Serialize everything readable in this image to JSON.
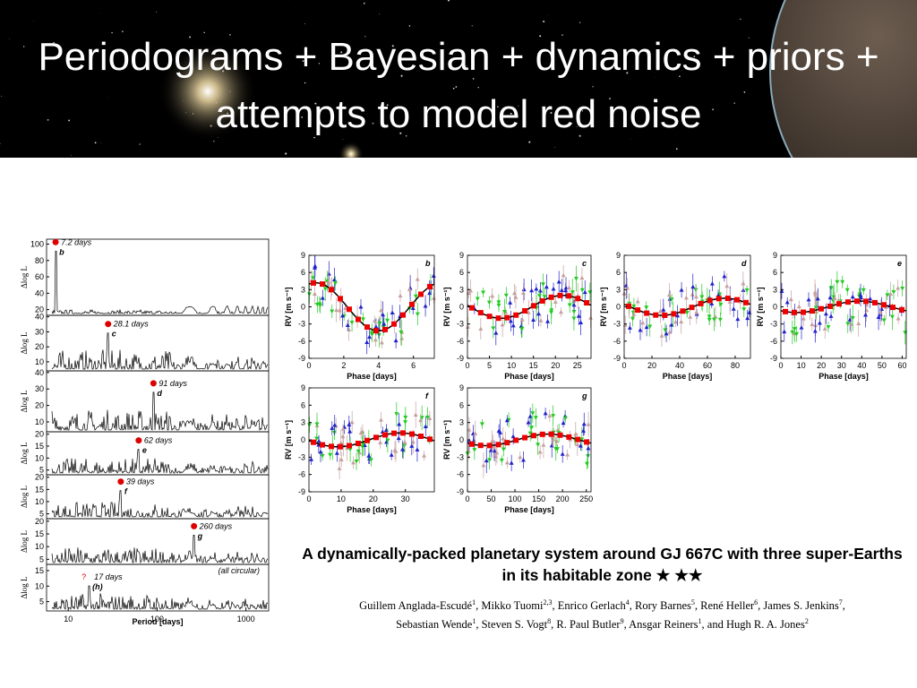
{
  "header": {
    "title": "Periodograms + Bayesian + dynamics + priors + attempts to model red noise"
  },
  "periodogram": {
    "ylabel": "Δlog L",
    "xlabel": "Period [days]",
    "xlim": [
      5.7,
      1800
    ],
    "xticks": [
      {
        "value": 10,
        "label": "10"
      },
      {
        "value": 100,
        "label": "100"
      },
      {
        "value": 1000,
        "label": "1000"
      }
    ],
    "note": "(all circular)",
    "panels": [
      {
        "peak": "7.2 days",
        "letter": "b",
        "ylim": [
          13,
          106
        ],
        "yticks": [
          100,
          80,
          60,
          40,
          20
        ]
      },
      {
        "peak": "28.1 days",
        "letter": "c",
        "ylim": [
          4,
          41
        ],
        "yticks": [
          40,
          30,
          20,
          10
        ]
      },
      {
        "peak": "91 days",
        "letter": "d",
        "ylim": [
          4,
          41
        ],
        "yticks": [
          40,
          30,
          20,
          10
        ]
      },
      {
        "peak": "62 days",
        "letter": "e",
        "ylim": [
          3,
          21
        ],
        "yticks": [
          20,
          15,
          10,
          5
        ]
      },
      {
        "peak": "39 days",
        "letter": "f",
        "ylim": [
          3,
          21
        ],
        "yticks": [
          20,
          15,
          10,
          5
        ]
      },
      {
        "peak": "260 days",
        "letter": "g",
        "ylim": [
          3,
          21
        ],
        "yticks": [
          20,
          15,
          10,
          5
        ]
      },
      {
        "peak": "17 days",
        "letter": "(h)",
        "mark": "?",
        "ylim": [
          2,
          17
        ],
        "yticks": [
          15,
          10,
          5
        ]
      }
    ]
  },
  "rv": {
    "ylabel": "RV [m s⁻¹]",
    "xlabel": "Phase [days]",
    "ylim": [
      -9,
      9
    ],
    "yticks": [
      9,
      6,
      3,
      0,
      -3,
      -6,
      -9
    ],
    "panels": [
      {
        "letter": "b",
        "xlim": [
          0,
          7.2
        ],
        "xticks": [
          0,
          2,
          4,
          6
        ]
      },
      {
        "letter": "c",
        "xlim": [
          0,
          28.1
        ],
        "xticks": [
          0,
          5,
          10,
          15,
          20,
          25
        ]
      },
      {
        "letter": "d",
        "xlim": [
          0,
          91
        ],
        "xticks": [
          0,
          20,
          40,
          60,
          80
        ]
      },
      {
        "letter": "e",
        "xlim": [
          0,
          62
        ],
        "xticks": [
          0,
          10,
          20,
          30,
          40,
          50,
          60
        ]
      },
      {
        "letter": "f",
        "xlim": [
          0,
          39
        ],
        "xticks": [
          0,
          10,
          20,
          30
        ]
      },
      {
        "letter": "g",
        "xlim": [
          0,
          260
        ],
        "xticks": [
          0,
          50,
          100,
          150,
          200,
          250
        ]
      }
    ]
  },
  "paper": {
    "title": "A dynamically-packed planetary system around GJ 667C with three super-Earths in its habitable zone",
    "stars": "★ ★★",
    "authors": [
      [
        {
          "text": "Guillem Anglada-Escudé",
          "sup": "1"
        },
        {
          "text": ", Mikko Tuomi",
          "sup": "2,3"
        },
        {
          "text": ", Enrico Gerlach",
          "sup": "4"
        },
        {
          "text": ", Rory Barnes",
          "sup": "5"
        },
        {
          "text": ", René Heller",
          "sup": "6"
        },
        {
          "text": ", James S. Jenkins",
          "sup": "7"
        },
        {
          "text": ",",
          "sup": ""
        }
      ],
      [
        {
          "text": "Sebastian Wende",
          "sup": "1"
        },
        {
          "text": ", Steven S. Vogt",
          "sup": "8"
        },
        {
          "text": ", R. Paul Butler",
          "sup": "9"
        },
        {
          "text": ", Ansgar Reiners",
          "sup": "1"
        },
        {
          "text": ", and Hugh R. A. Jones",
          "sup": "2"
        }
      ]
    ]
  }
}
